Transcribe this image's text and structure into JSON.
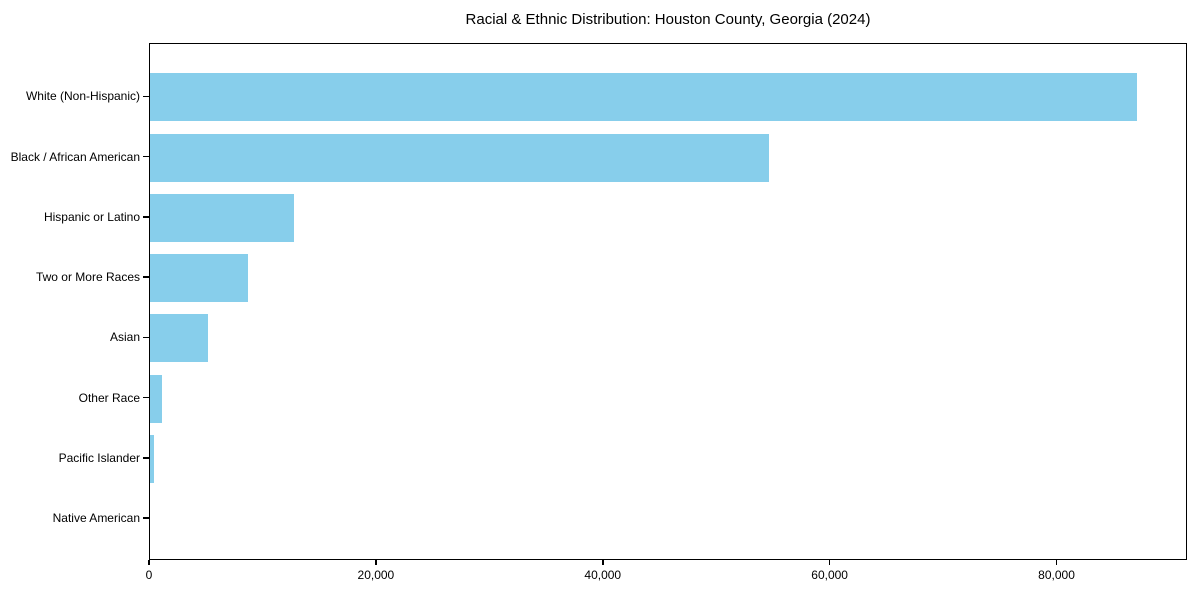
{
  "chart_data": {
    "type": "bar",
    "orientation": "horizontal",
    "title": "Racial & Ethnic Distribution: Houston County, Georgia (2024)",
    "categories": [
      "White (Non-Hispanic)",
      "Black / African American",
      "Hispanic or Latino",
      "Two or More Races",
      "Asian",
      "Other Race",
      "Pacific Islander",
      "Native American"
    ],
    "values": [
      87000,
      54600,
      12700,
      8600,
      5100,
      1100,
      350,
      0
    ],
    "xlabel": "",
    "ylabel": "",
    "xlim": [
      0,
      91500
    ],
    "x_ticks": [
      0,
      20000,
      40000,
      60000,
      80000
    ],
    "x_tick_labels": [
      "0",
      "20,000",
      "40,000",
      "60,000",
      "80,000"
    ],
    "bar_color": "#87CEEB",
    "axis_color": "#000000",
    "background": "#FFFFFF",
    "grid": false,
    "legend": null
  }
}
